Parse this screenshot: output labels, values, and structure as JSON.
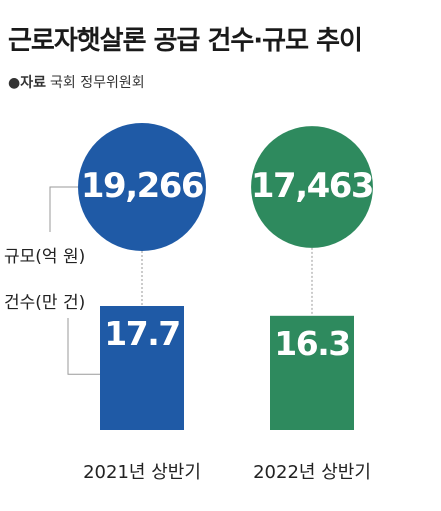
{
  "title": "근로자햇살론 공급 건수·규모 추이",
  "source": {
    "bullet": "●",
    "label": "자료",
    "text": "국회 정무위원회"
  },
  "legend": {
    "amount_label": "규모(억 원)",
    "count_label": "건수(만 건)"
  },
  "colors": {
    "series_2021": "#1f5aa6",
    "series_2022": "#2e8a5e",
    "guide": "#9a9a9a"
  },
  "chart_data": {
    "type": "bar",
    "title": "근로자햇살론 공급 건수·규모 추이",
    "categories": [
      "2021년 상반기",
      "2022년 상반기"
    ],
    "series": [
      {
        "name": "규모(억 원)",
        "values": [
          19266,
          17463
        ],
        "labels": [
          "19,266",
          "17,463"
        ],
        "mark": "circle"
      },
      {
        "name": "건수(만 건)",
        "values": [
          17.7,
          16.3
        ],
        "labels": [
          "17.7",
          "16.3"
        ],
        "mark": "bar"
      }
    ]
  }
}
